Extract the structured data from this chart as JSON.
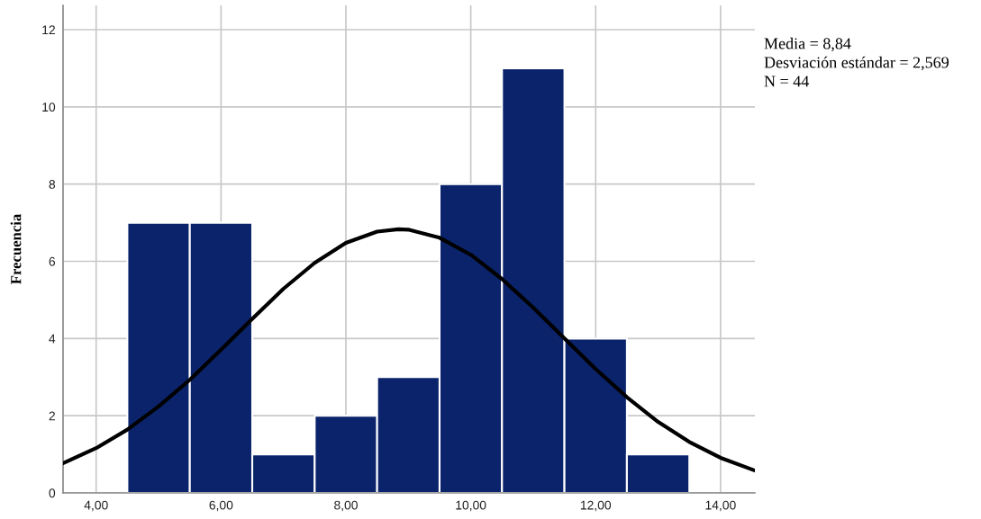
{
  "chart_data": {
    "type": "histogram",
    "ylabel": "Frecuencia",
    "bins": [
      4.5,
      5.5,
      6.5,
      7.5,
      8.5,
      9.5,
      10.5,
      11.5,
      12.5,
      13.5
    ],
    "values": [
      7,
      7,
      1,
      2,
      3,
      8,
      11,
      4,
      1
    ],
    "color": "#0b236b",
    "series": [
      {
        "type": "line",
        "color": "#000000",
        "x": [
          3.47,
          4,
          4.5,
          5,
          5.5,
          6,
          6.5,
          7,
          7.5,
          8,
          8.5,
          8.84,
          9,
          9.5,
          10,
          10.5,
          11,
          11.5,
          12,
          12.5,
          13,
          13.5,
          14,
          14.55
        ],
        "values": [
          0.77,
          1.16,
          1.64,
          2.24,
          2.93,
          3.71,
          4.51,
          5.29,
          5.96,
          6.48,
          6.77,
          6.83,
          6.82,
          6.61,
          6.17,
          5.54,
          4.8,
          4.0,
          3.21,
          2.48,
          1.84,
          1.32,
          0.91,
          0.58
        ]
      }
    ],
    "xlim": [
      3.47,
      14.55
    ],
    "ylim": [
      0,
      12.63
    ],
    "xticks": [
      {
        "value": 4,
        "label": "4,00"
      },
      {
        "value": 6,
        "label": "6,00"
      },
      {
        "value": 8,
        "label": "8,00"
      },
      {
        "value": 10,
        "label": "10,00"
      },
      {
        "value": 12,
        "label": "12,00"
      },
      {
        "value": 14,
        "label": "14,00"
      }
    ],
    "yticks": [
      0,
      2,
      4,
      6,
      8,
      10,
      12
    ],
    "grid": true,
    "annotations": [
      "Media = 8,84",
      "Desviación estándar = 2,569",
      "N = 44"
    ]
  }
}
